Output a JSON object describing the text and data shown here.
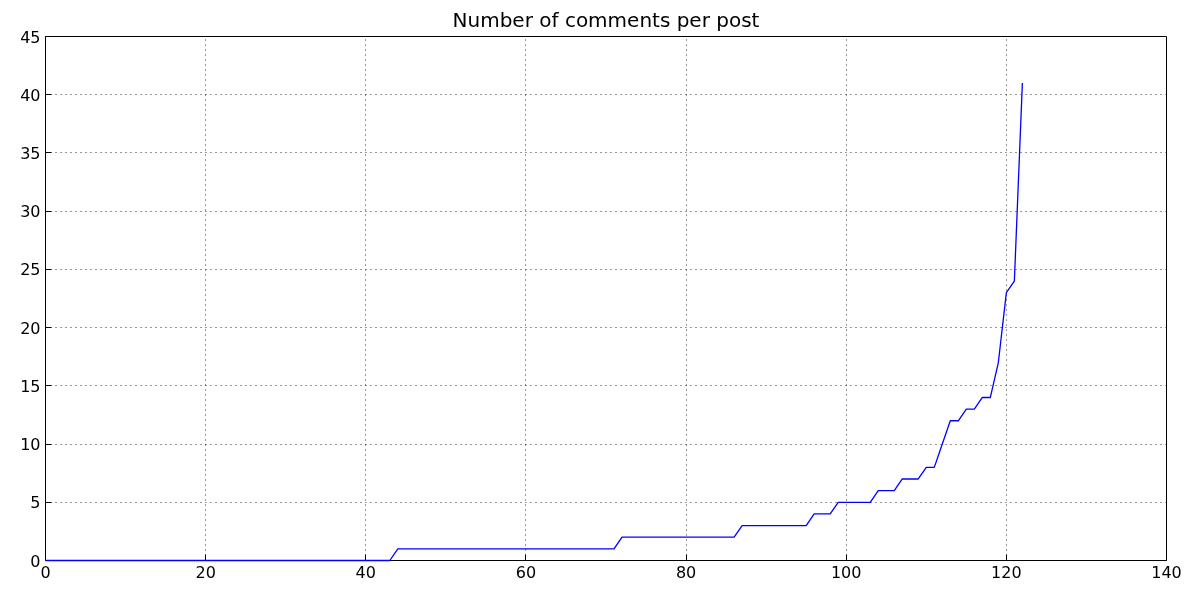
{
  "chart_data": {
    "type": "line",
    "title": "Number of comments per post",
    "x": [
      0,
      43,
      44,
      71,
      72,
      86,
      87,
      95,
      96,
      98,
      99,
      103,
      104,
      106,
      107,
      109,
      110,
      111,
      112,
      113,
      114,
      115,
      116,
      117,
      118,
      119,
      120,
      121,
      122
    ],
    "series": [
      {
        "color": "#0000ff",
        "values": [
          0,
          0,
          1,
          1,
          2,
          2,
          3,
          3,
          4,
          4,
          5,
          5,
          6,
          6,
          7,
          7,
          8,
          8,
          10,
          12,
          12,
          13,
          13,
          14,
          14,
          17,
          23,
          24,
          41
        ]
      }
    ],
    "xlim": [
      0,
      140
    ],
    "xticks": [
      0,
      20,
      40,
      60,
      80,
      100,
      120,
      140
    ],
    "ylim": [
      0,
      45
    ],
    "yticks": [
      0,
      5,
      10,
      15,
      20,
      25,
      30,
      35,
      40,
      45
    ],
    "grid": true,
    "line_style": "solid"
  }
}
